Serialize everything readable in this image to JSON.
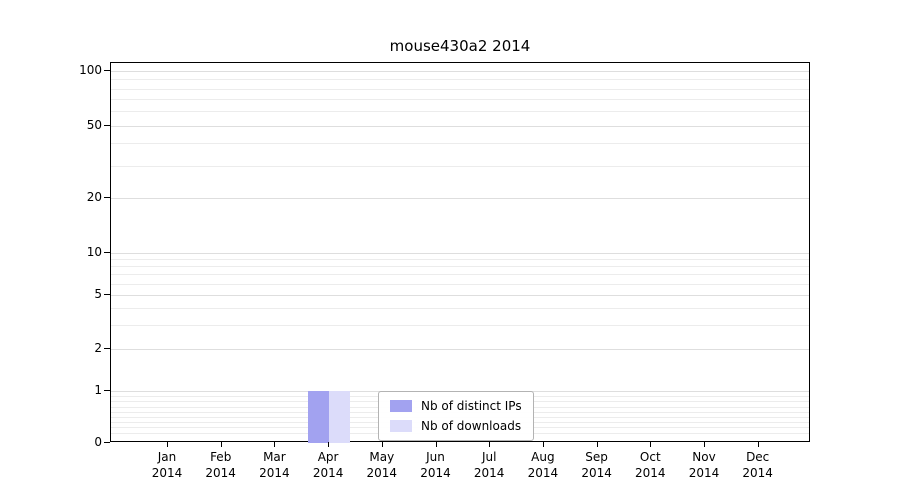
{
  "title": "mouse430a2 2014",
  "chart_data": {
    "type": "bar",
    "title": "mouse430a2 2014",
    "categories": [
      "Jan 2014",
      "Feb 2014",
      "Mar 2014",
      "Apr 2014",
      "May 2014",
      "Jun 2014",
      "Jul 2014",
      "Aug 2014",
      "Sep 2014",
      "Oct 2014",
      "Nov 2014",
      "Dec 2014"
    ],
    "x_tick_lines": [
      [
        "Jan",
        "2014"
      ],
      [
        "Feb",
        "2014"
      ],
      [
        "Mar",
        "2014"
      ],
      [
        "Apr",
        "2014"
      ],
      [
        "May",
        "2014"
      ],
      [
        "Jun",
        "2014"
      ],
      [
        "Jul",
        "2014"
      ],
      [
        "Aug",
        "2014"
      ],
      [
        "Sep",
        "2014"
      ],
      [
        "Oct",
        "2014"
      ],
      [
        "Nov",
        "2014"
      ],
      [
        "Dec",
        "2014"
      ]
    ],
    "series": [
      {
        "name": "Nb of distinct IPs",
        "color": "#a2a2f0",
        "values": [
          0,
          0,
          0,
          1,
          0,
          0,
          0,
          0,
          0,
          0,
          0,
          0
        ]
      },
      {
        "name": "Nb of downloads",
        "color": "#dcdcfa",
        "values": [
          0,
          0,
          0,
          1,
          0,
          0,
          0,
          0,
          0,
          0,
          0,
          0
        ]
      }
    ],
    "y_axis": {
      "scale": "symlog",
      "ticks": [
        0,
        1,
        2,
        5,
        10,
        20,
        50,
        100
      ],
      "minor_ticks": [
        0.2,
        0.3,
        0.4,
        0.5,
        0.6,
        0.7,
        0.8,
        0.9,
        3,
        4,
        6,
        7,
        8,
        9,
        30,
        40,
        60,
        70,
        80,
        90
      ],
      "ylim": [
        0,
        100
      ]
    },
    "legend": {
      "position": "bottom-center-inside",
      "items": [
        "Nb of distinct IPs",
        "Nb of downloads"
      ]
    },
    "grid": "horizontal"
  }
}
